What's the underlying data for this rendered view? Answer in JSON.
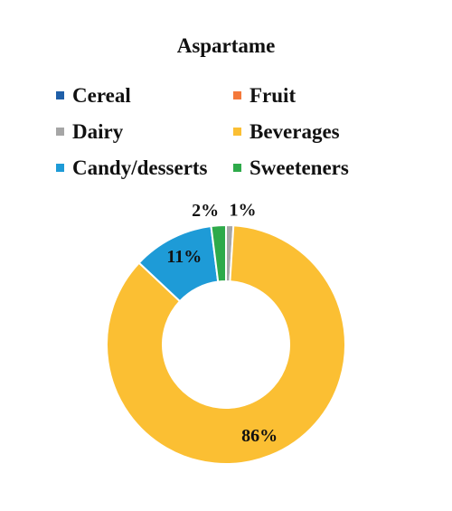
{
  "chart_data": {
    "type": "pie",
    "title": "Aspartame",
    "categories": [
      "Cereal",
      "Fruit",
      "Dairy",
      "Beverages",
      "Candy/desserts",
      "Sweeteners"
    ],
    "values": [
      0,
      0,
      1,
      86,
      11,
      2
    ],
    "data_labels": [
      "",
      "",
      "1%",
      "86%",
      "11%",
      "2%"
    ],
    "colors": [
      "#1f5fa8",
      "#f4793b",
      "#a6a6a6",
      "#fbbf33",
      "#1e9bd7",
      "#2eaa4a"
    ],
    "legend": {
      "placement": "top",
      "entries": [
        "Cereal",
        "Fruit",
        "Dairy",
        "Beverages",
        "Candy/desserts",
        "Sweeteners"
      ]
    },
    "donut": true
  }
}
